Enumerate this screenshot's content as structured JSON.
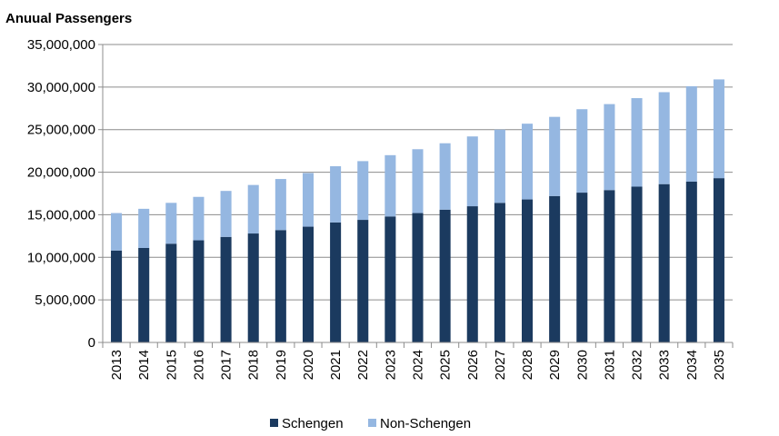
{
  "chart_data": {
    "type": "bar",
    "stacked": true,
    "title": "Anuual Passengers",
    "xlabel": "",
    "ylabel": "",
    "ylim": [
      0,
      35000000
    ],
    "yticks": [
      0,
      5000000,
      10000000,
      15000000,
      20000000,
      25000000,
      30000000,
      35000000
    ],
    "ytick_labels": [
      "0",
      "5,000,000",
      "10,000,000",
      "15,000,000",
      "20,000,000",
      "25,000,000",
      "30,000,000",
      "35,000,000"
    ],
    "grid": true,
    "legend_position": "bottom",
    "categories": [
      "2013",
      "2014",
      "2015",
      "2016",
      "2017",
      "2018",
      "2019",
      "2020",
      "2021",
      "2022",
      "2023",
      "2024",
      "2025",
      "2026",
      "2027",
      "2028",
      "2029",
      "2030",
      "2031",
      "2032",
      "2033",
      "2034",
      "2035"
    ],
    "series": [
      {
        "name": "Schengen",
        "color": "#1b3a5f",
        "values": [
          10800000,
          11100000,
          11600000,
          12000000,
          12400000,
          12800000,
          13200000,
          13600000,
          14100000,
          14400000,
          14800000,
          15200000,
          15600000,
          16000000,
          16400000,
          16800000,
          17200000,
          17600000,
          17900000,
          18300000,
          18600000,
          18900000,
          19300000
        ]
      },
      {
        "name": "Non-Schengen",
        "color": "#95b7e1",
        "values": [
          4400000,
          4600000,
          4800000,
          5100000,
          5400000,
          5700000,
          6000000,
          6300000,
          6600000,
          6900000,
          7200000,
          7500000,
          7800000,
          8200000,
          8600000,
          8900000,
          9300000,
          9800000,
          10100000,
          10400000,
          10800000,
          11200000,
          11600000
        ]
      }
    ]
  }
}
